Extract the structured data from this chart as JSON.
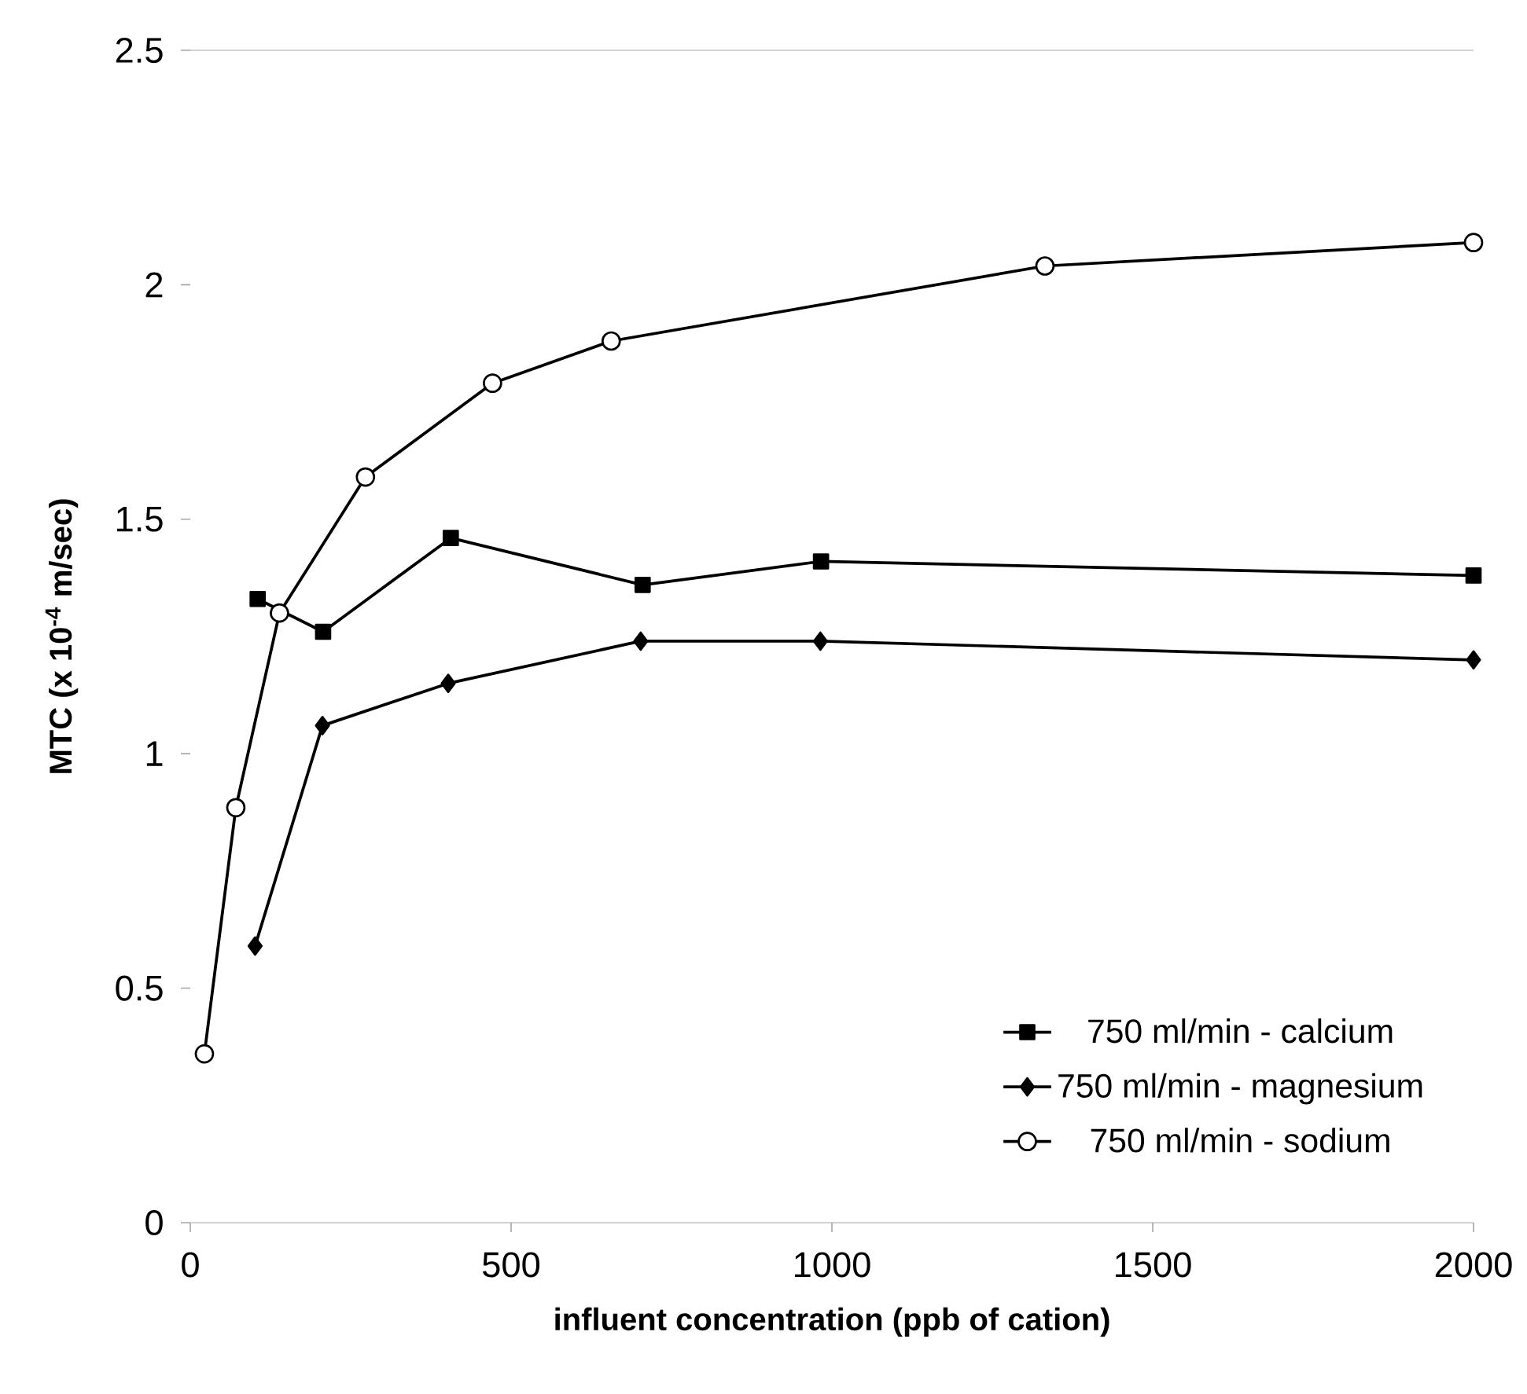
{
  "chart_data": {
    "type": "line",
    "xlabel": "influent concentration (ppb of cation)",
    "ylabel": "MTC (x 10$^{-4}$ m/sec)",
    "xlim": [
      0,
      2000
    ],
    "xticks": [
      0,
      500,
      1000,
      1500,
      2000
    ],
    "ylim": [
      0,
      2.5
    ],
    "yticks": [
      0,
      0.5,
      1,
      1.5,
      2,
      2.5
    ],
    "legend": "bottom right",
    "line_style": "solid",
    "series": [
      {
        "name": "750 ml/min - calcium",
        "color": "#000000",
        "marker": "square",
        "x": [
          105,
          207,
          406,
          705,
          983,
          2000
        ],
        "values": [
          1.33,
          1.26,
          1.46,
          1.36,
          1.41,
          1.38
        ]
      },
      {
        "name": "750 ml/min - magnesium",
        "color": "#000000",
        "marker": "diamond",
        "x": [
          101,
          206,
          402,
          702,
          982,
          2000
        ],
        "values": [
          0.59,
          1.06,
          1.15,
          1.24,
          1.24,
          1.2
        ]
      },
      {
        "name": "750 ml/min - sodium",
        "color": "#000000",
        "marker": "circle",
        "x": [
          22,
          71,
          139,
          273,
          471,
          656,
          1332,
          2000
        ],
        "values": [
          0.36,
          0.885,
          1.3,
          1.59,
          1.79,
          1.88,
          2.04,
          2.09
        ]
      }
    ]
  }
}
